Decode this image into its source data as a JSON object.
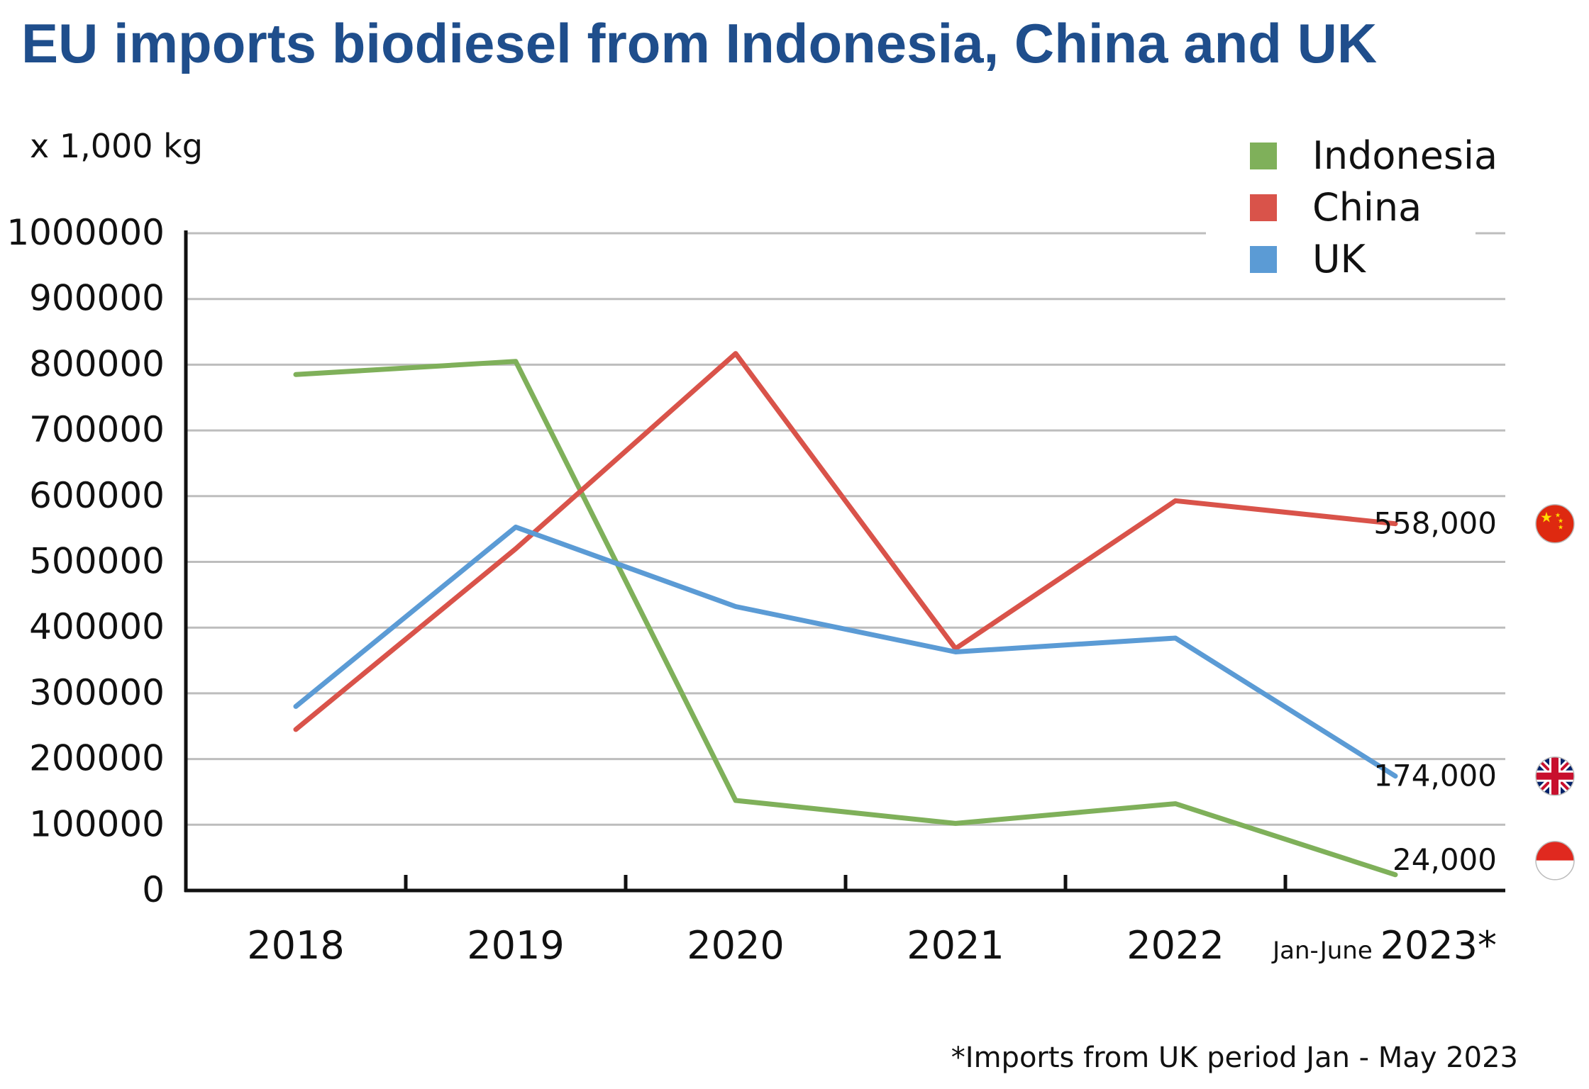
{
  "chart_data": {
    "type": "line",
    "title": "EU imports biodiesel from Indonesia, China and UK",
    "unit_label": "x 1,000 kg",
    "categories": [
      "2018",
      "2019",
      "2020",
      "2021",
      "2022",
      "2023*"
    ],
    "last_category_prefix": "Jan-June",
    "ylim": [
      0,
      1000000
    ],
    "yticks": [
      "1000000",
      "900000",
      "800000",
      "700000",
      "600000",
      "500000",
      "400000",
      "300000",
      "200000",
      "100000",
      "0"
    ],
    "ytick_values": [
      1000000,
      900000,
      800000,
      700000,
      600000,
      500000,
      400000,
      300000,
      200000,
      100000,
      0
    ],
    "grid": true,
    "legend_position": "top-right",
    "series": [
      {
        "name": "Indonesia",
        "color": "#7fb05a",
        "values": [
          785000,
          805000,
          137000,
          102000,
          132000,
          24000
        ],
        "end_label": "24,000",
        "flag": "indonesia-flag-icon"
      },
      {
        "name": "China",
        "color": "#d9534a",
        "values": [
          245000,
          520000,
          817000,
          368000,
          593000,
          558000
        ],
        "end_label": "558,000",
        "flag": "china-flag-icon"
      },
      {
        "name": "UK",
        "color": "#5b9bd5",
        "values": [
          280000,
          553000,
          432000,
          363000,
          384000,
          174000
        ],
        "end_label": "174,000",
        "flag": "uk-flag-icon"
      }
    ],
    "footnote": "*Imports from UK period Jan - May 2023"
  }
}
